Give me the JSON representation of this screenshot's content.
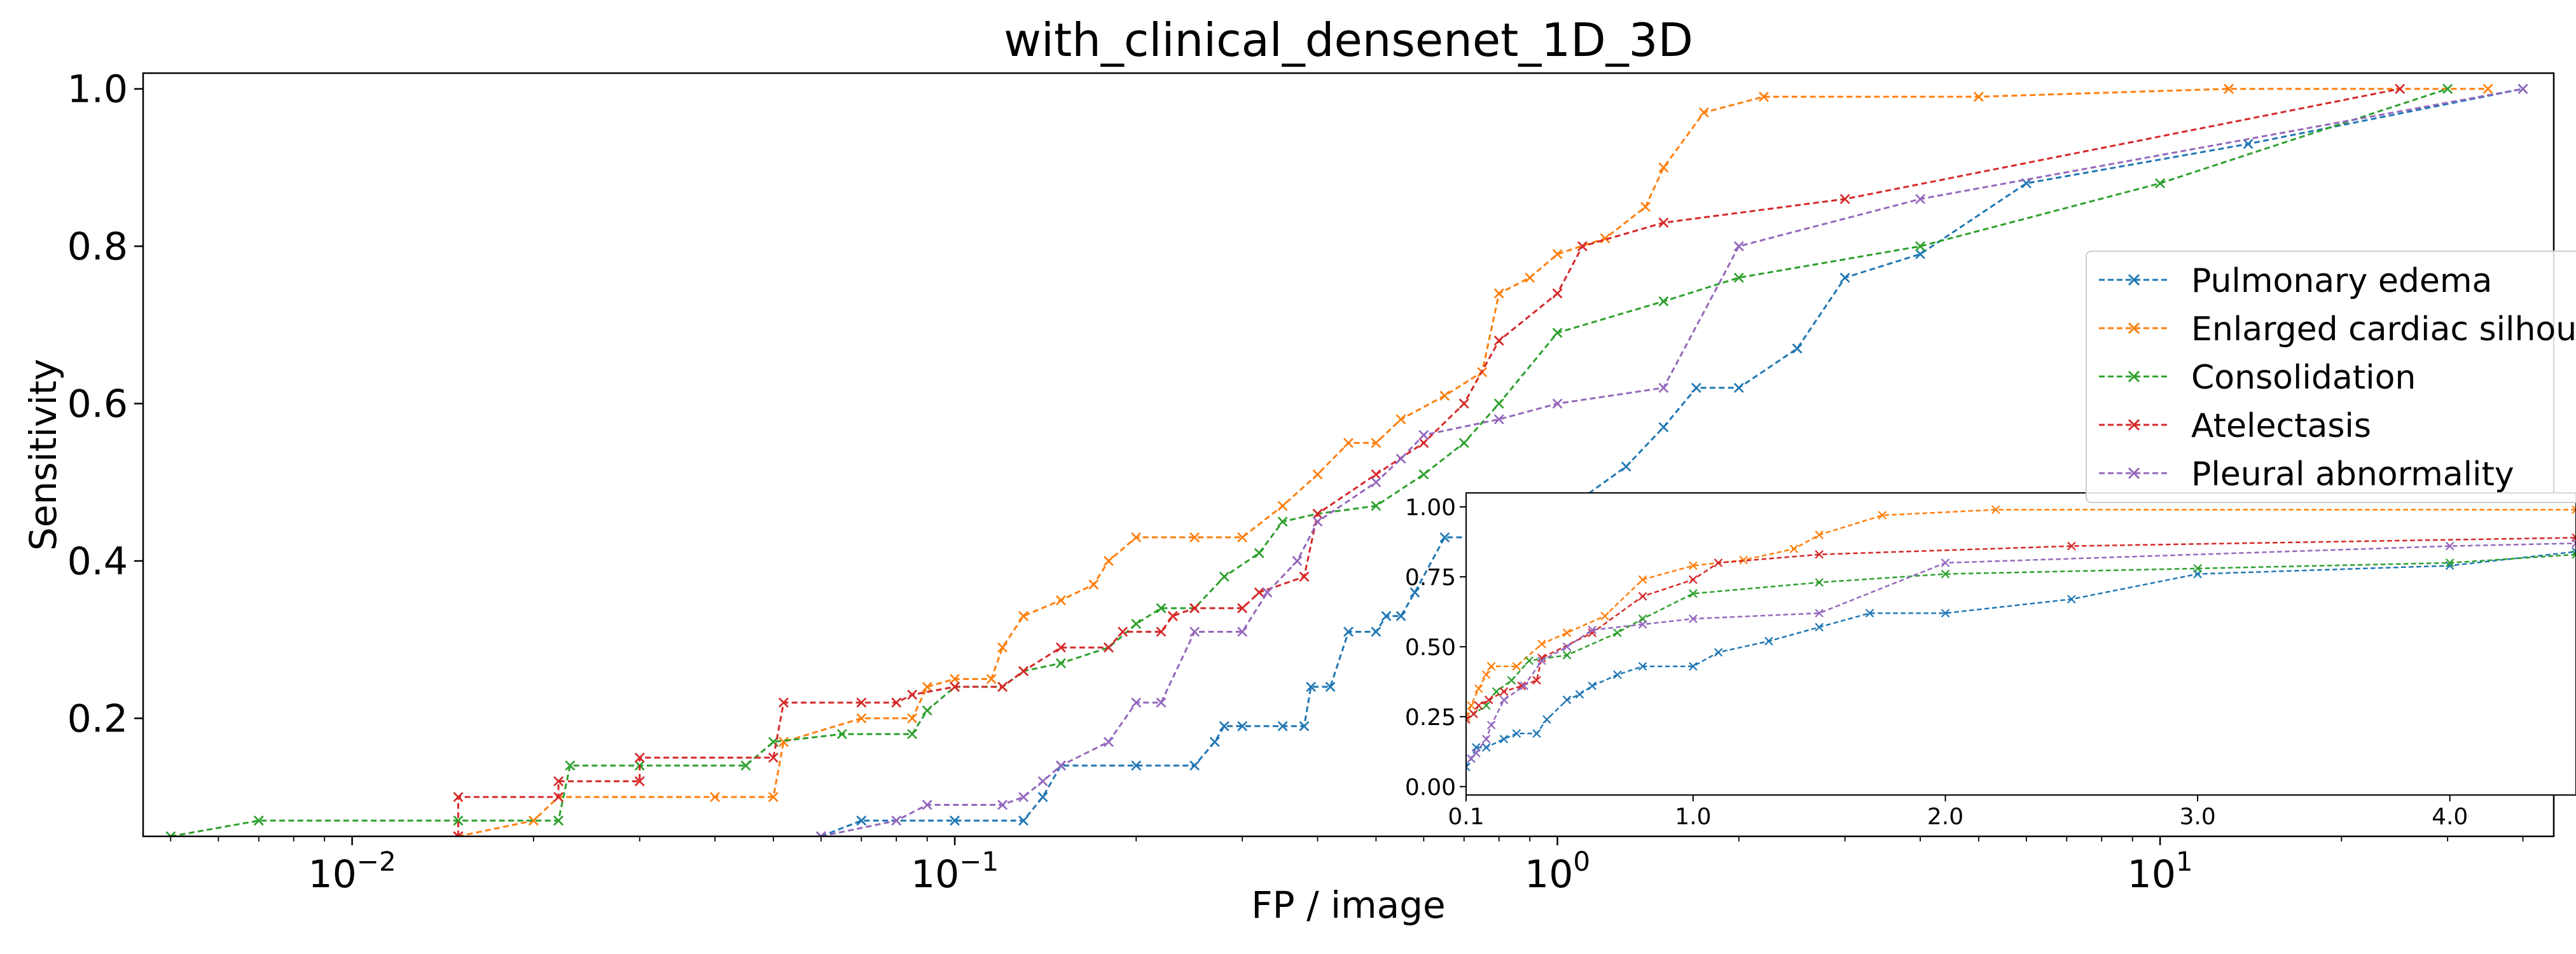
{
  "chart_data": [
    {
      "type": "line",
      "title": "with_clinical_densenet_1D_3D",
      "xlabel": "FP / image",
      "ylabel": "Sensitivity",
      "xscale": "log",
      "xlim": [
        0.0045,
        45
      ],
      "ylim": [
        0.05,
        1.02
      ],
      "xticks": [
        {
          "value": 0.01,
          "base": "10",
          "exp": "−2"
        },
        {
          "value": 0.1,
          "base": "10",
          "exp": "−1"
        },
        {
          "value": 1,
          "base": "10",
          "exp": "0"
        },
        {
          "value": 10,
          "base": "10",
          "exp": "1"
        }
      ],
      "yticks": [
        {
          "value": 0.2,
          "label": "0.2"
        },
        {
          "value": 0.4,
          "label": "0.4"
        },
        {
          "value": 0.6,
          "label": "0.6"
        },
        {
          "value": 0.8,
          "label": "0.8"
        },
        {
          "value": 1.0,
          "label": "1.0"
        }
      ],
      "grid": false,
      "legend_position": "right",
      "marker": "x",
      "line_style": "dashed",
      "series": [
        {
          "name": "Pulmonary edema",
          "color": "#1f77b4",
          "points": [
            [
              0.06,
              0.05
            ],
            [
              0.07,
              0.07
            ],
            [
              0.1,
              0.07
            ],
            [
              0.13,
              0.07
            ],
            [
              0.14,
              0.1
            ],
            [
              0.15,
              0.14
            ],
            [
              0.2,
              0.14
            ],
            [
              0.25,
              0.14
            ],
            [
              0.27,
              0.17
            ],
            [
              0.28,
              0.19
            ],
            [
              0.3,
              0.19
            ],
            [
              0.35,
              0.19
            ],
            [
              0.38,
              0.19
            ],
            [
              0.39,
              0.24
            ],
            [
              0.42,
              0.24
            ],
            [
              0.45,
              0.31
            ],
            [
              0.5,
              0.31
            ],
            [
              0.52,
              0.33
            ],
            [
              0.55,
              0.33
            ],
            [
              0.58,
              0.36
            ],
            [
              0.65,
              0.43
            ],
            [
              0.8,
              0.43
            ],
            [
              1.0,
              0.43
            ],
            [
              1.1,
              0.48
            ],
            [
              1.3,
              0.52
            ],
            [
              1.5,
              0.57
            ],
            [
              1.7,
              0.62
            ],
            [
              2.0,
              0.62
            ],
            [
              2.5,
              0.67
            ],
            [
              3.0,
              0.76
            ],
            [
              4.0,
              0.79
            ],
            [
              6.0,
              0.88
            ],
            [
              14.0,
              0.93
            ],
            [
              40.0,
              1.0
            ]
          ]
        },
        {
          "name": "Enlarged cardiac silhouette",
          "color": "#ff7f0e",
          "points": [
            [
              0.015,
              0.05
            ],
            [
              0.02,
              0.07
            ],
            [
              0.022,
              0.1
            ],
            [
              0.04,
              0.1
            ],
            [
              0.05,
              0.1
            ],
            [
              0.052,
              0.17
            ],
            [
              0.07,
              0.2
            ],
            [
              0.085,
              0.2
            ],
            [
              0.09,
              0.24
            ],
            [
              0.1,
              0.25
            ],
            [
              0.115,
              0.25
            ],
            [
              0.12,
              0.29
            ],
            [
              0.13,
              0.33
            ],
            [
              0.15,
              0.35
            ],
            [
              0.17,
              0.37
            ],
            [
              0.18,
              0.4
            ],
            [
              0.2,
              0.43
            ],
            [
              0.25,
              0.43
            ],
            [
              0.3,
              0.43
            ],
            [
              0.35,
              0.47
            ],
            [
              0.4,
              0.51
            ],
            [
              0.45,
              0.55
            ],
            [
              0.5,
              0.55
            ],
            [
              0.55,
              0.58
            ],
            [
              0.65,
              0.61
            ],
            [
              0.75,
              0.64
            ],
            [
              0.8,
              0.74
            ],
            [
              0.9,
              0.76
            ],
            [
              1.0,
              0.79
            ],
            [
              1.2,
              0.81
            ],
            [
              1.4,
              0.85
            ],
            [
              1.5,
              0.9
            ],
            [
              1.75,
              0.97
            ],
            [
              2.2,
              0.99
            ],
            [
              5.0,
              0.99
            ],
            [
              13.0,
              1.0
            ],
            [
              35.0,
              1.0
            ]
          ]
        },
        {
          "name": "Consolidation",
          "color": "#2ca02c",
          "points": [
            [
              0.005,
              0.05
            ],
            [
              0.007,
              0.07
            ],
            [
              0.015,
              0.07
            ],
            [
              0.022,
              0.07
            ],
            [
              0.023,
              0.14
            ],
            [
              0.03,
              0.14
            ],
            [
              0.045,
              0.14
            ],
            [
              0.05,
              0.17
            ],
            [
              0.065,
              0.18
            ],
            [
              0.085,
              0.18
            ],
            [
              0.09,
              0.21
            ],
            [
              0.1,
              0.24
            ],
            [
              0.12,
              0.24
            ],
            [
              0.13,
              0.26
            ],
            [
              0.15,
              0.27
            ],
            [
              0.18,
              0.29
            ],
            [
              0.2,
              0.32
            ],
            [
              0.22,
              0.34
            ],
            [
              0.25,
              0.34
            ],
            [
              0.28,
              0.38
            ],
            [
              0.32,
              0.41
            ],
            [
              0.35,
              0.45
            ],
            [
              0.4,
              0.46
            ],
            [
              0.5,
              0.47
            ],
            [
              0.6,
              0.51
            ],
            [
              0.7,
              0.55
            ],
            [
              0.8,
              0.6
            ],
            [
              1.0,
              0.69
            ],
            [
              1.5,
              0.73
            ],
            [
              2.0,
              0.76
            ],
            [
              4.0,
              0.8
            ],
            [
              10.0,
              0.88
            ],
            [
              30.0,
              1.0
            ]
          ]
        },
        {
          "name": "Atelectasis",
          "color": "#d62728",
          "points": [
            [
              0.015,
              0.05
            ],
            [
              0.015,
              0.1
            ],
            [
              0.022,
              0.1
            ],
            [
              0.022,
              0.12
            ],
            [
              0.03,
              0.12
            ],
            [
              0.03,
              0.15
            ],
            [
              0.05,
              0.15
            ],
            [
              0.052,
              0.22
            ],
            [
              0.07,
              0.22
            ],
            [
              0.08,
              0.22
            ],
            [
              0.085,
              0.23
            ],
            [
              0.1,
              0.24
            ],
            [
              0.12,
              0.24
            ],
            [
              0.13,
              0.26
            ],
            [
              0.15,
              0.29
            ],
            [
              0.18,
              0.29
            ],
            [
              0.19,
              0.31
            ],
            [
              0.22,
              0.31
            ],
            [
              0.23,
              0.33
            ],
            [
              0.25,
              0.34
            ],
            [
              0.3,
              0.34
            ],
            [
              0.32,
              0.36
            ],
            [
              0.38,
              0.38
            ],
            [
              0.4,
              0.46
            ],
            [
              0.5,
              0.51
            ],
            [
              0.6,
              0.55
            ],
            [
              0.7,
              0.6
            ],
            [
              0.8,
              0.68
            ],
            [
              1.0,
              0.74
            ],
            [
              1.1,
              0.8
            ],
            [
              1.5,
              0.83
            ],
            [
              3.0,
              0.86
            ],
            [
              25.0,
              1.0
            ]
          ]
        },
        {
          "name": "Pleural abnormality",
          "color": "#9467bd",
          "points": [
            [
              0.06,
              0.05
            ],
            [
              0.08,
              0.07
            ],
            [
              0.09,
              0.09
            ],
            [
              0.12,
              0.09
            ],
            [
              0.13,
              0.1
            ],
            [
              0.14,
              0.12
            ],
            [
              0.15,
              0.14
            ],
            [
              0.18,
              0.17
            ],
            [
              0.2,
              0.22
            ],
            [
              0.22,
              0.22
            ],
            [
              0.25,
              0.31
            ],
            [
              0.3,
              0.31
            ],
            [
              0.33,
              0.36
            ],
            [
              0.37,
              0.4
            ],
            [
              0.4,
              0.45
            ],
            [
              0.5,
              0.5
            ],
            [
              0.55,
              0.53
            ],
            [
              0.6,
              0.56
            ],
            [
              0.8,
              0.58
            ],
            [
              1.0,
              0.6
            ],
            [
              1.5,
              0.62
            ],
            [
              2.0,
              0.8
            ],
            [
              4.0,
              0.86
            ],
            [
              40.0,
              1.0
            ]
          ]
        }
      ]
    },
    {
      "type": "line",
      "role": "inset",
      "xlim": [
        0.1,
        4.5
      ],
      "ylim": [
        -0.03,
        1.05
      ],
      "xticks": [
        {
          "value": 0.1,
          "label": "0.1"
        },
        {
          "value": 1.0,
          "label": "1.0"
        },
        {
          "value": 2.0,
          "label": "2.0"
        },
        {
          "value": 3.0,
          "label": "3.0"
        },
        {
          "value": 4.0,
          "label": "4.0"
        }
      ],
      "yticks": [
        {
          "value": 0.0,
          "label": "0.00"
        },
        {
          "value": 0.25,
          "label": "0.25"
        },
        {
          "value": 0.5,
          "label": "0.50"
        },
        {
          "value": 0.75,
          "label": "0.75"
        },
        {
          "value": 1.0,
          "label": "1.00"
        }
      ],
      "series": [
        {
          "name": "Pulmonary edema",
          "color": "#1f77b4",
          "points": [
            [
              0.1,
              0.07
            ],
            [
              0.12,
              0.1
            ],
            [
              0.14,
              0.14
            ],
            [
              0.18,
              0.14
            ],
            [
              0.25,
              0.17
            ],
            [
              0.3,
              0.19
            ],
            [
              0.38,
              0.19
            ],
            [
              0.42,
              0.24
            ],
            [
              0.5,
              0.31
            ],
            [
              0.55,
              0.33
            ],
            [
              0.6,
              0.36
            ],
            [
              0.7,
              0.4
            ],
            [
              0.8,
              0.43
            ],
            [
              1.0,
              0.43
            ],
            [
              1.1,
              0.48
            ],
            [
              1.3,
              0.52
            ],
            [
              1.5,
              0.57
            ],
            [
              1.7,
              0.62
            ],
            [
              2.0,
              0.62
            ],
            [
              2.5,
              0.67
            ],
            [
              3.0,
              0.76
            ],
            [
              4.0,
              0.79
            ],
            [
              4.5,
              0.84
            ]
          ]
        },
        {
          "name": "Enlarged cardiac silhouette",
          "color": "#ff7f0e",
          "points": [
            [
              0.1,
              0.25
            ],
            [
              0.12,
              0.29
            ],
            [
              0.15,
              0.35
            ],
            [
              0.18,
              0.4
            ],
            [
              0.2,
              0.43
            ],
            [
              0.3,
              0.43
            ],
            [
              0.4,
              0.51
            ],
            [
              0.5,
              0.55
            ],
            [
              0.65,
              0.61
            ],
            [
              0.8,
              0.74
            ],
            [
              1.0,
              0.79
            ],
            [
              1.2,
              0.81
            ],
            [
              1.4,
              0.85
            ],
            [
              1.5,
              0.9
            ],
            [
              1.75,
              0.97
            ],
            [
              2.2,
              0.99
            ],
            [
              4.5,
              0.99
            ]
          ]
        },
        {
          "name": "Consolidation",
          "color": "#2ca02c",
          "points": [
            [
              0.1,
              0.24
            ],
            [
              0.13,
              0.26
            ],
            [
              0.18,
              0.29
            ],
            [
              0.22,
              0.34
            ],
            [
              0.28,
              0.38
            ],
            [
              0.35,
              0.45
            ],
            [
              0.5,
              0.47
            ],
            [
              0.7,
              0.55
            ],
            [
              0.8,
              0.6
            ],
            [
              1.0,
              0.69
            ],
            [
              1.5,
              0.73
            ],
            [
              2.0,
              0.76
            ],
            [
              3.0,
              0.78
            ],
            [
              4.0,
              0.8
            ],
            [
              4.5,
              0.83
            ]
          ]
        },
        {
          "name": "Atelectasis",
          "color": "#d62728",
          "points": [
            [
              0.1,
              0.24
            ],
            [
              0.13,
              0.26
            ],
            [
              0.15,
              0.29
            ],
            [
              0.19,
              0.31
            ],
            [
              0.25,
              0.34
            ],
            [
              0.32,
              0.36
            ],
            [
              0.38,
              0.38
            ],
            [
              0.4,
              0.46
            ],
            [
              0.6,
              0.55
            ],
            [
              0.8,
              0.68
            ],
            [
              1.0,
              0.74
            ],
            [
              1.1,
              0.8
            ],
            [
              1.5,
              0.83
            ],
            [
              2.5,
              0.86
            ],
            [
              4.5,
              0.89
            ]
          ]
        },
        {
          "name": "Pleural abnormality",
          "color": "#9467bd",
          "points": [
            [
              0.12,
              0.1
            ],
            [
              0.14,
              0.12
            ],
            [
              0.18,
              0.17
            ],
            [
              0.2,
              0.22
            ],
            [
              0.25,
              0.31
            ],
            [
              0.33,
              0.36
            ],
            [
              0.4,
              0.45
            ],
            [
              0.5,
              0.5
            ],
            [
              0.6,
              0.56
            ],
            [
              0.8,
              0.58
            ],
            [
              1.0,
              0.6
            ],
            [
              1.5,
              0.62
            ],
            [
              2.0,
              0.8
            ],
            [
              4.0,
              0.86
            ],
            [
              4.5,
              0.87
            ]
          ]
        }
      ]
    }
  ]
}
